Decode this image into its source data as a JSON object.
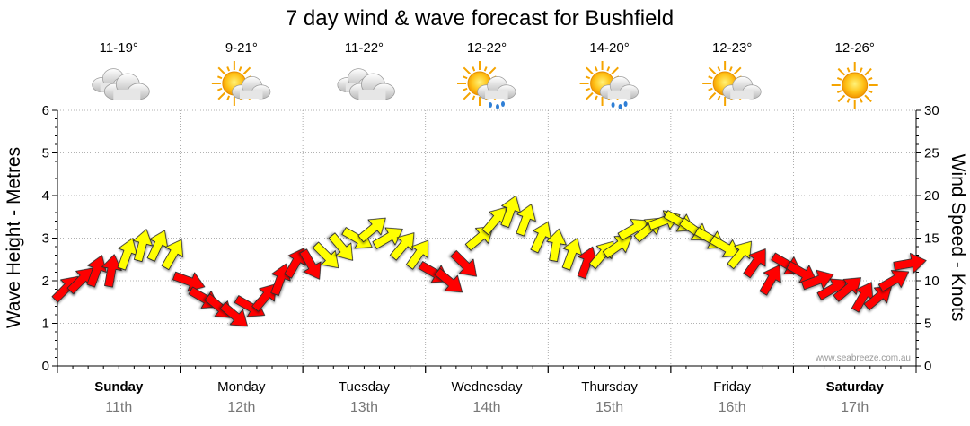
{
  "chart_data": {
    "type": "line",
    "title": "7 day wind & wave forecast for Bushfield",
    "ylabel_left": "Wave Height - Metres",
    "ylabel_right": "Wind Speed - Knots",
    "ylim_left": [
      0,
      6
    ],
    "ylim_right": [
      0,
      30
    ],
    "yticks_left": [
      "0",
      "1",
      "2",
      "3",
      "4",
      "5",
      "6"
    ],
    "yticks_right": [
      "0",
      "5",
      "10",
      "15",
      "20",
      "25",
      "30"
    ],
    "credit": "www.seabreeze.com.au",
    "colors": {
      "strong": "#ff0000",
      "light": "#ffff00",
      "grid": "#999999"
    },
    "days": [
      {
        "name": "Sunday",
        "date": "11th",
        "temp": "11-19°",
        "icon": "cloudy-icon",
        "bold": true
      },
      {
        "name": "Monday",
        "date": "12th",
        "temp": "9-21°",
        "icon": "partly-sunny-icon",
        "bold": false
      },
      {
        "name": "Tuesday",
        "date": "13th",
        "temp": "11-22°",
        "icon": "cloudy-icon",
        "bold": false
      },
      {
        "name": "Wednesday",
        "date": "14th",
        "temp": "12-22°",
        "icon": "sun-showers-icon",
        "bold": false
      },
      {
        "name": "Thursday",
        "date": "15th",
        "temp": "14-20°",
        "icon": "sun-showers-icon",
        "bold": false
      },
      {
        "name": "Friday",
        "date": "16th",
        "temp": "12-23°",
        "icon": "partly-sunny-icon",
        "bold": false
      },
      {
        "name": "Saturday",
        "date": "17th",
        "temp": "12-26°",
        "icon": "sunny-icon",
        "bold": true
      }
    ],
    "series": [
      {
        "name": "Wind speed (knots)",
        "unit": "knots",
        "step_hours": 3,
        "values": [
          [
            9,
            10,
            11,
            11,
            13,
            14,
            14,
            13
          ],
          [
            10,
            8,
            7,
            6,
            7,
            8,
            10,
            12
          ],
          [
            12,
            13,
            14,
            15,
            16,
            15,
            14,
            13
          ],
          [
            11,
            10,
            12,
            15,
            17,
            18,
            17,
            15
          ],
          [
            14,
            13,
            12,
            13,
            14,
            16,
            16,
            17
          ],
          [
            17,
            16,
            15,
            14,
            13,
            12,
            10,
            12
          ],
          [
            11,
            10,
            9,
            9,
            8,
            8,
            10,
            12
          ]
        ],
        "direction_deg": [
          [
            225,
            225,
            200,
            190,
            200,
            195,
            205,
            210
          ],
          [
            290,
            300,
            310,
            310,
            300,
            220,
            200,
            210
          ],
          [
            330,
            315,
            320,
            300,
            230,
            240,
            220,
            215
          ],
          [
            300,
            310,
            315,
            230,
            220,
            200,
            200,
            205
          ],
          [
            190,
            200,
            200,
            220,
            235,
            240,
            230,
            250
          ],
          [
            300,
            305,
            300,
            300,
            220,
            215,
            210,
            300
          ],
          [
            300,
            250,
            240,
            230,
            210,
            230,
            240,
            260
          ]
        ]
      }
    ]
  }
}
